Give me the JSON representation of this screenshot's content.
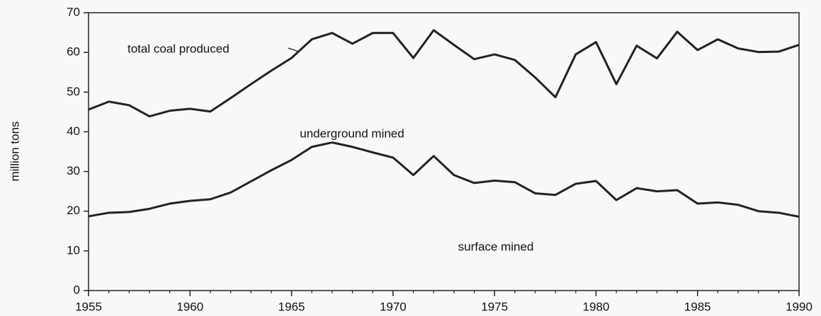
{
  "chart_data": {
    "type": "line",
    "ylabel": "million tons",
    "x": [
      1955,
      1956,
      1957,
      1958,
      1959,
      1960,
      1961,
      1962,
      1963,
      1964,
      1965,
      1966,
      1967,
      1968,
      1969,
      1970,
      1971,
      1972,
      1973,
      1974,
      1975,
      1976,
      1977,
      1978,
      1979,
      1980,
      1981,
      1982,
      1983,
      1984,
      1985,
      1986,
      1987,
      1988,
      1989,
      1990
    ],
    "series": [
      {
        "name": "total coal produced",
        "color": "#222222",
        "values": [
          45.6,
          47.6,
          46.7,
          43.9,
          45.3,
          45.8,
          45.1,
          48.5,
          52,
          55.4,
          58.6,
          63.3,
          64.9,
          62.2,
          64.9,
          64.9,
          58.6,
          65.6,
          61.9,
          58.3,
          59.5,
          58.1,
          53.7,
          48.7,
          59.5,
          62.6,
          52,
          61.7,
          58.5,
          65.2,
          60.6,
          63.3,
          61,
          60.1,
          60.2,
          61.9
        ]
      },
      {
        "name": "surface mined",
        "color": "#222222",
        "values": [
          18.7,
          19.6,
          19.8,
          20.6,
          21.9,
          22.6,
          23,
          24.7,
          27.5,
          30.3,
          32.9,
          36.2,
          37.3,
          36.2,
          34.8,
          33.5,
          29.1,
          33.9,
          29.1,
          27.1,
          27.7,
          27.3,
          24.5,
          24.1,
          26.9,
          27.6,
          22.8,
          25.8,
          25,
          25.3,
          21.9,
          22.2,
          21.6,
          20,
          19.6,
          18.6
        ]
      }
    ],
    "annotations": [
      "underground mined"
    ],
    "xlim": [
      1955,
      1990
    ],
    "xticks": [
      1955,
      1960,
      1965,
      1970,
      1975,
      1980,
      1985,
      1990
    ],
    "ylim": [
      0,
      70
    ],
    "yticks": [
      0,
      10,
      20,
      30,
      40,
      50,
      60,
      70
    ]
  }
}
